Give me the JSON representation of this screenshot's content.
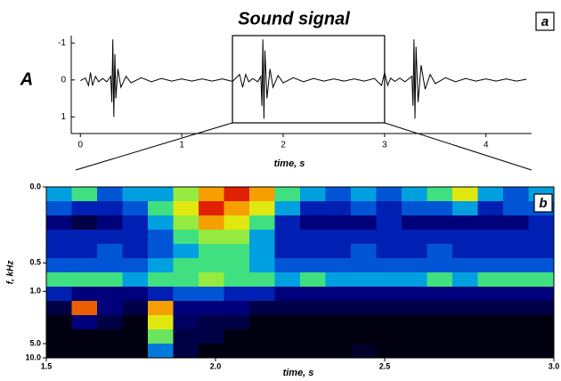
{
  "chart_data": [
    {
      "type": "line",
      "title": "Sound signal",
      "panel_label": "a",
      "ylabel": "A",
      "xlabel": "time, s",
      "color": "#000000",
      "x": [
        0,
        0.05,
        0.08,
        0.1,
        0.12,
        0.15,
        0.18,
        0.22,
        0.26,
        0.3,
        0.31,
        0.32,
        0.33,
        0.34,
        0.35,
        0.37,
        0.4,
        0.45,
        0.5,
        0.6,
        0.7,
        0.8,
        0.9,
        1.0,
        1.1,
        1.2,
        1.3,
        1.4,
        1.5,
        1.57,
        1.6,
        1.63,
        1.66,
        1.7,
        1.75,
        1.78,
        1.79,
        1.8,
        1.81,
        1.82,
        1.84,
        1.87,
        1.9,
        1.95,
        2.0,
        2.1,
        2.2,
        2.3,
        2.4,
        2.5,
        2.6,
        2.7,
        2.8,
        2.9,
        2.97,
        3.0,
        3.03,
        3.06,
        3.1,
        3.15,
        3.2,
        3.27,
        3.28,
        3.29,
        3.3,
        3.31,
        3.33,
        3.36,
        3.4,
        3.45,
        3.5,
        3.6,
        3.7,
        3.8,
        3.9,
        4.0,
        4.1,
        4.2,
        4.3,
        4.4
      ],
      "values": [
        0.02,
        -0.05,
        0.15,
        -0.2,
        0.15,
        -0.1,
        0.05,
        -0.04,
        0.05,
        -0.1,
        0.6,
        -1.1,
        1.0,
        -0.7,
        0.5,
        -0.3,
        0.2,
        -0.1,
        0.08,
        -0.06,
        0.05,
        -0.04,
        0.03,
        -0.03,
        0.03,
        -0.03,
        0.03,
        -0.03,
        0.04,
        -0.15,
        0.2,
        -0.15,
        0.05,
        -0.04,
        0.05,
        -0.1,
        0.7,
        -1.1,
        1.05,
        -0.8,
        0.5,
        -0.3,
        0.2,
        -0.12,
        0.08,
        -0.06,
        0.05,
        -0.04,
        0.03,
        -0.03,
        0.03,
        -0.03,
        0.03,
        -0.04,
        0.15,
        -0.2,
        0.15,
        -0.05,
        0.04,
        -0.05,
        0.05,
        -0.1,
        0.7,
        -1.1,
        1.05,
        -0.9,
        0.6,
        -0.4,
        0.25,
        -0.15,
        0.1,
        -0.06,
        0.05,
        -0.04,
        0.03,
        -0.03,
        0.03,
        -0.03,
        0.03,
        -0.02
      ],
      "xlim": [
        -0.09,
        4.45
      ],
      "ylim": [
        1.45,
        -1.2
      ],
      "xticks": [
        0,
        1,
        2,
        3,
        4
      ],
      "yticks": [
        -1,
        0,
        1
      ],
      "zoom_range": [
        1.5,
        3.0
      ]
    },
    {
      "type": "heatmap",
      "panel_label": "b",
      "ylabel": "f, kHz",
      "xlabel": "time, s",
      "xbins": [
        1.5,
        1.575,
        1.65,
        1.725,
        1.8,
        1.875,
        1.95,
        2.025,
        2.1,
        2.175,
        2.25,
        2.325,
        2.4,
        2.475,
        2.55,
        2.625,
        2.7,
        2.775,
        2.85,
        2.925,
        3.0
      ],
      "ybins": [
        0,
        0.09,
        0.18,
        0.27,
        0.36,
        0.45,
        0.6,
        0.85,
        1.3,
        2,
        3,
        5,
        10
      ],
      "values": [
        [
          0.5,
          0.6,
          0.4,
          0.5,
          0.5,
          0.7,
          0.9,
          1.0,
          0.9,
          0.6,
          0.5,
          0.4,
          0.5,
          0.4,
          0.5,
          0.6,
          0.8,
          0.5,
          0.4,
          0.5
        ],
        [
          0.4,
          0.3,
          0.3,
          0.4,
          0.6,
          0.8,
          1.0,
          0.9,
          0.8,
          0.5,
          0.3,
          0.3,
          0.4,
          0.3,
          0.4,
          0.4,
          0.5,
          0.3,
          0.4,
          0.4
        ],
        [
          0.2,
          0.1,
          0.2,
          0.3,
          0.5,
          0.7,
          0.9,
          0.8,
          0.6,
          0.3,
          0.2,
          0.2,
          0.2,
          0.3,
          0.2,
          0.2,
          0.2,
          0.2,
          0.2,
          0.3
        ],
        [
          0.3,
          0.3,
          0.3,
          0.3,
          0.4,
          0.6,
          0.7,
          0.7,
          0.5,
          0.3,
          0.3,
          0.3,
          0.3,
          0.3,
          0.3,
          0.3,
          0.3,
          0.3,
          0.3,
          0.3
        ],
        [
          0.3,
          0.3,
          0.4,
          0.3,
          0.4,
          0.5,
          0.6,
          0.6,
          0.5,
          0.3,
          0.3,
          0.3,
          0.4,
          0.3,
          0.3,
          0.4,
          0.3,
          0.3,
          0.3,
          0.3
        ],
        [
          0.4,
          0.4,
          0.4,
          0.4,
          0.5,
          0.6,
          0.6,
          0.6,
          0.5,
          0.4,
          0.4,
          0.4,
          0.4,
          0.4,
          0.4,
          0.4,
          0.4,
          0.4,
          0.4,
          0.4
        ],
        [
          0.6,
          0.6,
          0.6,
          0.5,
          0.6,
          0.6,
          0.7,
          0.6,
          0.6,
          0.5,
          0.6,
          0.5,
          0.5,
          0.5,
          0.5,
          0.6,
          0.5,
          0.6,
          0.6,
          0.6
        ],
        [
          0.3,
          0.2,
          0.2,
          0.2,
          0.3,
          0.4,
          0.4,
          0.3,
          0.3,
          0.2,
          0.2,
          0.2,
          0.2,
          0.2,
          0.2,
          0.2,
          0.2,
          0.2,
          0.2,
          0.2
        ],
        [
          0.1,
          0.95,
          0.2,
          0.1,
          0.9,
          0.2,
          0.2,
          0.2,
          0.1,
          0.1,
          0.1,
          0.1,
          0.1,
          0.1,
          0.1,
          0.1,
          0.1,
          0.1,
          0.1,
          0.1
        ],
        [
          0,
          0.2,
          0.1,
          0,
          0.8,
          0.15,
          0.1,
          0.1,
          0,
          0,
          0,
          0,
          0,
          0,
          0,
          0,
          0,
          0,
          0,
          0
        ],
        [
          0,
          0,
          0,
          0,
          0.65,
          0.1,
          0.1,
          0,
          0,
          0,
          0,
          0,
          0,
          0,
          0,
          0,
          0,
          0,
          0,
          0
        ],
        [
          0,
          0,
          0,
          0,
          0.45,
          0.1,
          0,
          0,
          0,
          0,
          0,
          0,
          0.05,
          0,
          0,
          0,
          0,
          0,
          0,
          0
        ]
      ],
      "xlim": [
        1.5,
        3.0
      ],
      "ylim": [
        0,
        10
      ],
      "xticks": [
        1.5,
        {
          "value": 2,
          "label": "2.0"
        },
        2.5,
        {
          "value": 3,
          "label": "3.0"
        }
      ],
      "yticks": [
        {
          "value": 0,
          "label": "0.0"
        },
        {
          "value": 0.5,
          "label": "0.5"
        },
        {
          "value": 1,
          "label": "1.0"
        },
        {
          "value": 5,
          "label": "5.0"
        },
        {
          "value": 10,
          "label": "10.0"
        }
      ]
    }
  ]
}
